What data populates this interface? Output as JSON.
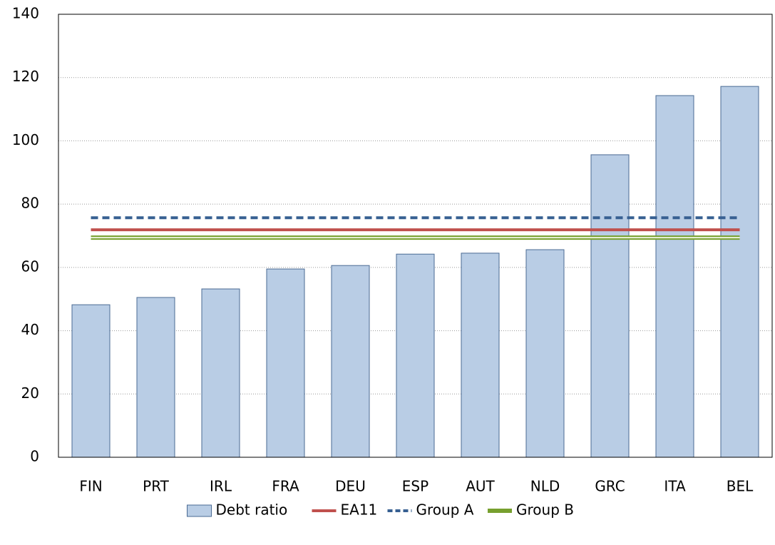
{
  "chart_data": {
    "type": "bar",
    "categories": [
      "FIN",
      "PRT",
      "IRL",
      "FRA",
      "DEU",
      "ESP",
      "AUT",
      "NLD",
      "GRC",
      "ITA",
      "BEL"
    ],
    "series": [
      {
        "name": "Debt ratio",
        "type": "bar",
        "color": "#b9cde5",
        "values": [
          48.2,
          50.5,
          53.2,
          59.5,
          60.6,
          64.2,
          64.5,
          65.6,
          95.6,
          114.3,
          117.2
        ]
      },
      {
        "name": "EA11",
        "type": "line",
        "color": "#c0504d",
        "line_style": "solid",
        "values": [
          71.9,
          71.9,
          71.9,
          71.9,
          71.9,
          71.9,
          71.9,
          71.9,
          71.9,
          71.9,
          71.9
        ]
      },
      {
        "name": "Group A",
        "type": "line",
        "color": "#376092",
        "line_style": "dashed",
        "values": [
          75.7,
          75.7,
          75.7,
          75.7,
          75.7,
          75.7,
          75.7,
          75.7,
          75.7,
          75.7,
          75.7
        ]
      },
      {
        "name": "Group B",
        "type": "line",
        "color": "#77a02e",
        "line_style": "double",
        "values": [
          69.4,
          69.4,
          69.4,
          69.4,
          69.4,
          69.4,
          69.4,
          69.4,
          69.4,
          69.4,
          69.4
        ]
      }
    ],
    "ylim": [
      0,
      140
    ],
    "yticks": [
      0,
      20,
      40,
      60,
      80,
      100,
      120,
      140
    ],
    "grid": true,
    "legend": "bottom"
  }
}
